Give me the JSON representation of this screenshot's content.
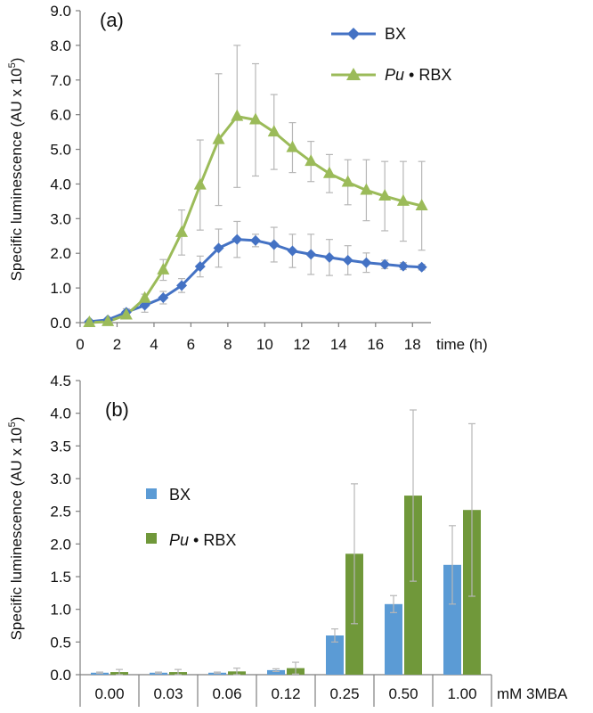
{
  "chart_data": [
    {
      "type": "line",
      "panel_label": "(a)",
      "xlabel": "time (h)",
      "ylabel_prefix": "Specific luminescence (AU x 10",
      "ylabel_sup": "5",
      "ylabel_suffix": ")",
      "xlim": [
        0,
        19
      ],
      "ylim": [
        0,
        9
      ],
      "x_ticks": [
        0,
        2,
        4,
        6,
        8,
        10,
        12,
        14,
        16,
        18
      ],
      "y_ticks": [
        "0.0",
        "1.0",
        "2.0",
        "3.0",
        "4.0",
        "5.0",
        "6.0",
        "7.0",
        "8.0",
        "9.0"
      ],
      "grid": false,
      "legend_position": "top-right",
      "series": [
        {
          "name": "BX",
          "color": "#4472c4",
          "marker": "diamond",
          "x": [
            0.5,
            1.5,
            2.5,
            3.5,
            4.5,
            5.5,
            6.5,
            7.5,
            8.5,
            9.5,
            10.5,
            11.5,
            12.5,
            13.5,
            14.5,
            15.5,
            16.5,
            17.5,
            18.5
          ],
          "y": [
            0.03,
            0.08,
            0.3,
            0.5,
            0.72,
            1.07,
            1.62,
            2.15,
            2.4,
            2.37,
            2.25,
            2.07,
            1.97,
            1.88,
            1.8,
            1.73,
            1.68,
            1.63,
            1.6
          ],
          "err": [
            0.02,
            0.04,
            0.1,
            0.2,
            0.18,
            0.2,
            0.3,
            0.55,
            0.52,
            0.18,
            0.5,
            0.48,
            0.58,
            0.52,
            0.42,
            0.28,
            0.12,
            0.1,
            0.08
          ]
        },
        {
          "name": "Pu • RBX",
          "name_italic": "Pu",
          "name_rest": " • RBX",
          "color": "#9bbb59",
          "marker": "triangle",
          "x": [
            0.5,
            1.5,
            2.5,
            3.5,
            4.5,
            5.5,
            6.5,
            7.5,
            8.5,
            9.5,
            10.5,
            11.5,
            12.5,
            13.5,
            14.5,
            15.5,
            16.5,
            17.5,
            18.5
          ],
          "y": [
            0.0,
            0.03,
            0.22,
            0.7,
            1.52,
            2.6,
            3.97,
            5.28,
            5.95,
            5.85,
            5.5,
            5.05,
            4.65,
            4.3,
            4.05,
            3.82,
            3.65,
            3.5,
            3.37
          ],
          "err": [
            0.02,
            0.04,
            0.08,
            0.12,
            0.3,
            0.65,
            1.3,
            1.9,
            2.05,
            1.62,
            1.08,
            0.72,
            0.58,
            0.55,
            0.65,
            0.88,
            1.0,
            1.15,
            1.28
          ]
        }
      ]
    },
    {
      "type": "bar",
      "panel_label": "(b)",
      "xlabel": "mM 3MBA",
      "ylabel_prefix": "Specific luminescence (AU x 10",
      "ylabel_sup": "5",
      "ylabel_suffix": ")",
      "categories": [
        "0.00",
        "0.03",
        "0.06",
        "0.12",
        "0.25",
        "0.50",
        "1.00"
      ],
      "ylim": [
        0,
        4.5
      ],
      "y_ticks": [
        "0.0",
        "0.5",
        "1.0",
        "1.5",
        "2.0",
        "2.5",
        "3.0",
        "3.5",
        "4.0",
        "4.5"
      ],
      "grid": false,
      "legend_position": "left-center",
      "series": [
        {
          "name": "BX",
          "color": "#5b9bd5",
          "values": [
            0.03,
            0.03,
            0.03,
            0.07,
            0.6,
            1.08,
            1.68
          ],
          "err": [
            0.01,
            0.01,
            0.01,
            0.02,
            0.1,
            0.13,
            0.6
          ]
        },
        {
          "name": "Pu • RBX",
          "name_italic": "Pu",
          "name_rest": " • RBX",
          "color": "#70983a",
          "values": [
            0.04,
            0.04,
            0.05,
            0.1,
            1.85,
            2.74,
            2.52
          ],
          "err": [
            0.04,
            0.04,
            0.05,
            0.09,
            1.07,
            1.31,
            1.32
          ]
        }
      ]
    }
  ]
}
